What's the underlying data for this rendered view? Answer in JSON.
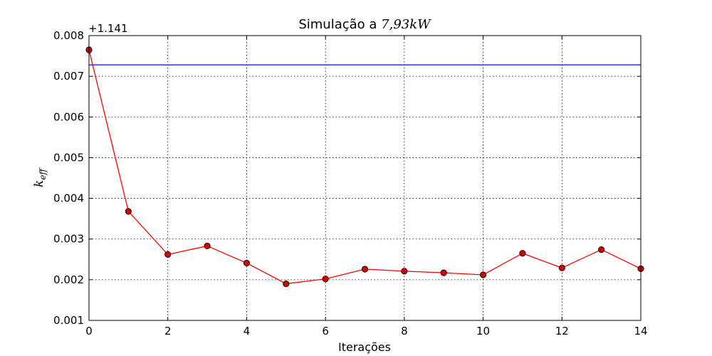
{
  "chart_data": {
    "type": "line",
    "title_prefix": "Simulação a ",
    "title_math": "7,93kW",
    "xlabel": "Iterações",
    "ylabel_main": "k",
    "ylabel_sub": "eff",
    "y_offset_label": "+1.141",
    "xlim": [
      0,
      14
    ],
    "ylim": [
      0.001,
      0.008
    ],
    "x_ticks": [
      0,
      2,
      4,
      6,
      8,
      10,
      12,
      14
    ],
    "x_tick_labels": [
      "0",
      "2",
      "4",
      "6",
      "8",
      "10",
      "12",
      "14"
    ],
    "y_ticks": [
      0.001,
      0.002,
      0.003,
      0.004,
      0.005,
      0.006,
      0.007,
      0.008
    ],
    "y_tick_labels": [
      "0.001",
      "0.002",
      "0.003",
      "0.004",
      "0.005",
      "0.006",
      "0.007",
      "0.008"
    ],
    "grid": true,
    "series": [
      {
        "x": [
          0,
          1,
          2,
          3,
          4,
          5,
          6,
          7,
          8,
          9,
          10,
          11,
          12,
          13,
          14
        ],
        "y": [
          0.00765,
          0.00368,
          0.00262,
          0.00283,
          0.00241,
          0.0019,
          0.00202,
          0.00226,
          0.00221,
          0.00217,
          0.00212,
          0.00265,
          0.00229,
          0.00274,
          0.00227
        ],
        "color": "#ff0000",
        "marker": "circle",
        "marker_color": "#cc0000"
      }
    ],
    "hlines": [
      {
        "y": 0.00728,
        "color": "#0000ff"
      }
    ]
  }
}
